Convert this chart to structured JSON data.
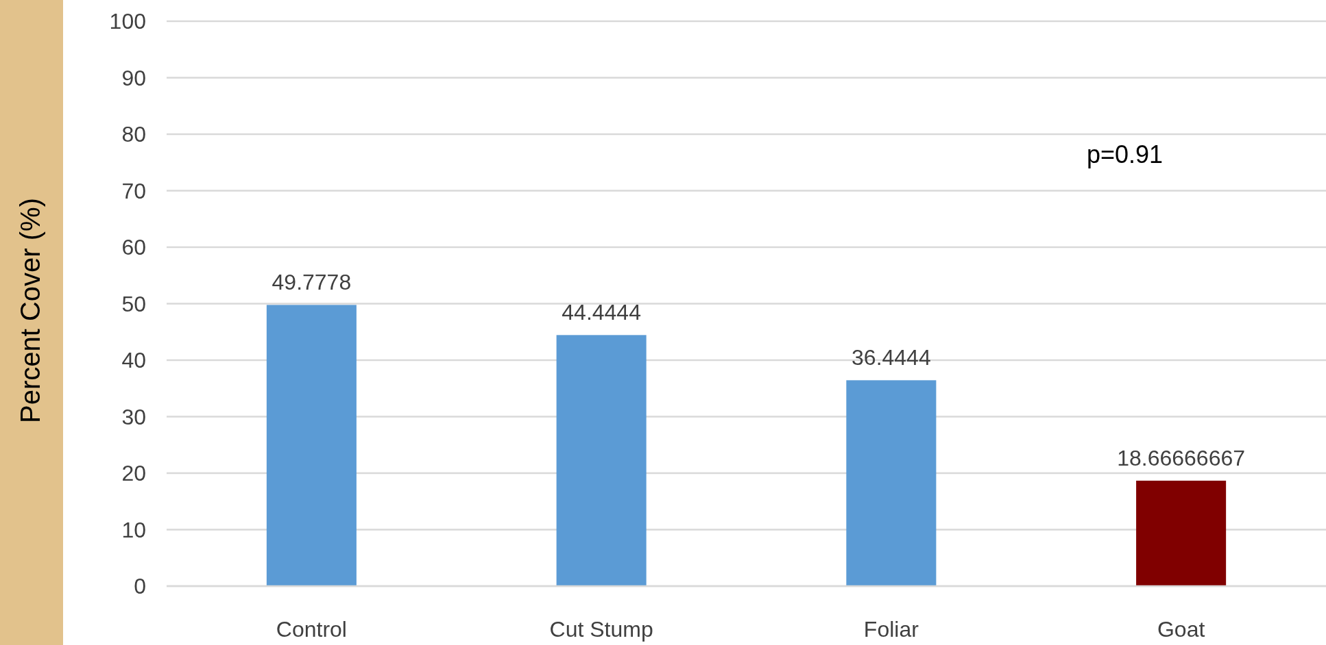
{
  "chart_data": {
    "type": "bar",
    "ylabel": "Percent Cover (%)",
    "categories": [
      "Control",
      "Cut Stump",
      "Foliar",
      "Goat"
    ],
    "values": [
      49.7778,
      44.4444,
      36.4444,
      18.66666667
    ],
    "colors": [
      "#5b9bd5",
      "#5b9bd5",
      "#5b9bd5",
      "#800000"
    ],
    "ylim": [
      0,
      100
    ],
    "yticks": [
      0,
      10,
      20,
      30,
      40,
      50,
      60,
      70,
      80,
      90,
      100
    ],
    "grid": "y",
    "data_labels": true,
    "annotations": [
      "p=0.91"
    ]
  }
}
